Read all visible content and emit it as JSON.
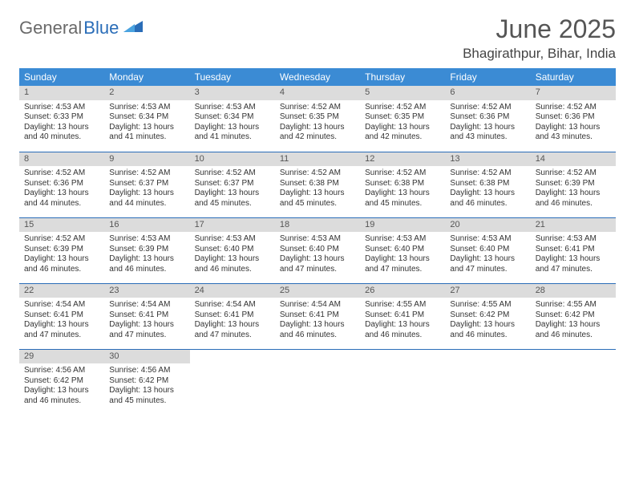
{
  "logo": {
    "part1": "General",
    "part2": "Blue"
  },
  "title": "June 2025",
  "location": "Bhagirathpur, Bihar, India",
  "colors": {
    "header_bg": "#3b8bd4",
    "header_fg": "#ffffff",
    "daynum_bg": "#dcdcdc",
    "row_border": "#2a6db8",
    "logo_gray": "#6a6a6a",
    "logo_blue": "#2a6db8"
  },
  "weekdays": [
    "Sunday",
    "Monday",
    "Tuesday",
    "Wednesday",
    "Thursday",
    "Friday",
    "Saturday"
  ],
  "weeks": [
    [
      {
        "n": "1",
        "sr": "4:53 AM",
        "ss": "6:33 PM",
        "dl": "13 hours and 40 minutes."
      },
      {
        "n": "2",
        "sr": "4:53 AM",
        "ss": "6:34 PM",
        "dl": "13 hours and 41 minutes."
      },
      {
        "n": "3",
        "sr": "4:53 AM",
        "ss": "6:34 PM",
        "dl": "13 hours and 41 minutes."
      },
      {
        "n": "4",
        "sr": "4:52 AM",
        "ss": "6:35 PM",
        "dl": "13 hours and 42 minutes."
      },
      {
        "n": "5",
        "sr": "4:52 AM",
        "ss": "6:35 PM",
        "dl": "13 hours and 42 minutes."
      },
      {
        "n": "6",
        "sr": "4:52 AM",
        "ss": "6:36 PM",
        "dl": "13 hours and 43 minutes."
      },
      {
        "n": "7",
        "sr": "4:52 AM",
        "ss": "6:36 PM",
        "dl": "13 hours and 43 minutes."
      }
    ],
    [
      {
        "n": "8",
        "sr": "4:52 AM",
        "ss": "6:36 PM",
        "dl": "13 hours and 44 minutes."
      },
      {
        "n": "9",
        "sr": "4:52 AM",
        "ss": "6:37 PM",
        "dl": "13 hours and 44 minutes."
      },
      {
        "n": "10",
        "sr": "4:52 AM",
        "ss": "6:37 PM",
        "dl": "13 hours and 45 minutes."
      },
      {
        "n": "11",
        "sr": "4:52 AM",
        "ss": "6:38 PM",
        "dl": "13 hours and 45 minutes."
      },
      {
        "n": "12",
        "sr": "4:52 AM",
        "ss": "6:38 PM",
        "dl": "13 hours and 45 minutes."
      },
      {
        "n": "13",
        "sr": "4:52 AM",
        "ss": "6:38 PM",
        "dl": "13 hours and 46 minutes."
      },
      {
        "n": "14",
        "sr": "4:52 AM",
        "ss": "6:39 PM",
        "dl": "13 hours and 46 minutes."
      }
    ],
    [
      {
        "n": "15",
        "sr": "4:52 AM",
        "ss": "6:39 PM",
        "dl": "13 hours and 46 minutes."
      },
      {
        "n": "16",
        "sr": "4:53 AM",
        "ss": "6:39 PM",
        "dl": "13 hours and 46 minutes."
      },
      {
        "n": "17",
        "sr": "4:53 AM",
        "ss": "6:40 PM",
        "dl": "13 hours and 46 minutes."
      },
      {
        "n": "18",
        "sr": "4:53 AM",
        "ss": "6:40 PM",
        "dl": "13 hours and 47 minutes."
      },
      {
        "n": "19",
        "sr": "4:53 AM",
        "ss": "6:40 PM",
        "dl": "13 hours and 47 minutes."
      },
      {
        "n": "20",
        "sr": "4:53 AM",
        "ss": "6:40 PM",
        "dl": "13 hours and 47 minutes."
      },
      {
        "n": "21",
        "sr": "4:53 AM",
        "ss": "6:41 PM",
        "dl": "13 hours and 47 minutes."
      }
    ],
    [
      {
        "n": "22",
        "sr": "4:54 AM",
        "ss": "6:41 PM",
        "dl": "13 hours and 47 minutes."
      },
      {
        "n": "23",
        "sr": "4:54 AM",
        "ss": "6:41 PM",
        "dl": "13 hours and 47 minutes."
      },
      {
        "n": "24",
        "sr": "4:54 AM",
        "ss": "6:41 PM",
        "dl": "13 hours and 47 minutes."
      },
      {
        "n": "25",
        "sr": "4:54 AM",
        "ss": "6:41 PM",
        "dl": "13 hours and 46 minutes."
      },
      {
        "n": "26",
        "sr": "4:55 AM",
        "ss": "6:41 PM",
        "dl": "13 hours and 46 minutes."
      },
      {
        "n": "27",
        "sr": "4:55 AM",
        "ss": "6:42 PM",
        "dl": "13 hours and 46 minutes."
      },
      {
        "n": "28",
        "sr": "4:55 AM",
        "ss": "6:42 PM",
        "dl": "13 hours and 46 minutes."
      }
    ],
    [
      {
        "n": "29",
        "sr": "4:56 AM",
        "ss": "6:42 PM",
        "dl": "13 hours and 46 minutes."
      },
      {
        "n": "30",
        "sr": "4:56 AM",
        "ss": "6:42 PM",
        "dl": "13 hours and 45 minutes."
      },
      null,
      null,
      null,
      null,
      null
    ]
  ],
  "labels": {
    "sunrise": "Sunrise:",
    "sunset": "Sunset:",
    "daylight": "Daylight:"
  }
}
